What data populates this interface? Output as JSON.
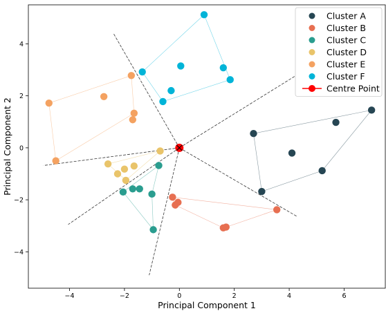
{
  "chart_data": {
    "type": "scatter",
    "title": "",
    "xlabel": "Principal Component 1",
    "ylabel": "Principal Component 2",
    "xlim": [
      -5.5,
      7.5
    ],
    "ylim": [
      -5.4,
      5.5
    ],
    "xticks": [
      -4,
      -2,
      0,
      2,
      4,
      6
    ],
    "yticks": [
      -4,
      -2,
      0,
      2,
      4
    ],
    "xtick_labels": [
      "−4",
      "−2",
      "0",
      "2",
      "4",
      "6"
    ],
    "ytick_labels": [
      "−4",
      "−2",
      "0",
      "2",
      "4"
    ],
    "grid": false,
    "legend_position": "top-right",
    "centre": {
      "name": "Centre Point",
      "x": 0,
      "y": 0,
      "color": "#ff0000"
    },
    "series": [
      {
        "name": "Cluster A",
        "color": "#264653",
        "x": [
          2.7,
          3.0,
          4.1,
          5.2,
          5.7,
          7.0
        ],
        "y": [
          0.55,
          -1.68,
          -0.2,
          -0.88,
          0.98,
          1.45
        ]
      },
      {
        "name": "Cluster B",
        "color": "#e76f51",
        "x": [
          -0.25,
          -0.15,
          -0.05,
          1.6,
          1.7,
          3.55
        ],
        "y": [
          -1.9,
          -2.2,
          -2.1,
          -3.08,
          -3.05,
          -2.38
        ]
      },
      {
        "name": "Cluster C",
        "color": "#2a9d8f",
        "x": [
          -2.05,
          -1.7,
          -1.45,
          -1.0,
          -0.95,
          -0.75
        ],
        "y": [
          -1.7,
          -1.58,
          -1.58,
          -1.78,
          -3.15,
          -0.68
        ]
      },
      {
        "name": "Cluster D",
        "color": "#e9c46a",
        "x": [
          -2.6,
          -2.25,
          -2.0,
          -1.95,
          -1.65,
          -0.7
        ],
        "y": [
          -0.62,
          -1.0,
          -0.82,
          -1.25,
          -0.7,
          -0.12
        ]
      },
      {
        "name": "Cluster E",
        "color": "#f4a261",
        "x": [
          -4.75,
          -4.5,
          -2.75,
          -1.75,
          -1.7,
          -1.65
        ],
        "y": [
          1.72,
          -0.5,
          1.97,
          2.78,
          1.08,
          1.33
        ]
      },
      {
        "name": "Cluster F",
        "color": "#00b4d8",
        "x": [
          -1.35,
          -0.6,
          -0.3,
          0.05,
          0.9,
          1.6,
          1.85
        ],
        "y": [
          2.92,
          1.78,
          2.2,
          3.15,
          5.12,
          3.08,
          2.62
        ]
      }
    ],
    "hulls": [
      {
        "series": 0,
        "order": [
          1,
          0,
          5,
          3
        ]
      },
      {
        "series": 1,
        "order": [
          0,
          1,
          3,
          4,
          5
        ]
      },
      {
        "series": 2,
        "order": [
          0,
          4,
          3,
          5
        ]
      },
      {
        "series": 3,
        "order": [
          0,
          3,
          5
        ]
      },
      {
        "series": 4,
        "order": [
          0,
          1,
          5,
          3
        ]
      },
      {
        "series": 5,
        "order": [
          0,
          1,
          6,
          4
        ]
      }
    ],
    "divider_lines": [
      {
        "from": [
          0,
          0
        ],
        "to": [
          -2.4,
          4.4
        ]
      },
      {
        "from": [
          0,
          0
        ],
        "to": [
          4.2,
          2.75
        ]
      },
      {
        "from": [
          0,
          0
        ],
        "to": [
          4.3,
          -2.65
        ]
      },
      {
        "from": [
          0,
          0
        ],
        "to": [
          -1.1,
          -4.9
        ]
      },
      {
        "from": [
          0,
          0
        ],
        "to": [
          -4.05,
          -2.95
        ]
      },
      {
        "from": [
          0,
          0
        ],
        "to": [
          -4.95,
          -0.68
        ]
      }
    ]
  }
}
